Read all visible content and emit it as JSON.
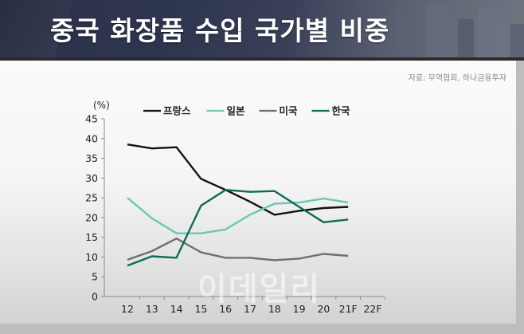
{
  "header": {
    "title": "중국 화장품 수입 국가별 비중"
  },
  "source": "자료: 무역협회, 하나금융투자",
  "watermark": "이데일리",
  "colors": {
    "france": "#111111",
    "japan": "#6cc8b0",
    "usa": "#6f6f6f",
    "korea": "#0f6a5a"
  },
  "chart_data": {
    "type": "line",
    "title": "중국 화장품 수입 국가별 비중",
    "xlabel": "",
    "ylabel": "(%)",
    "ylim": [
      0,
      45
    ],
    "yticks": [
      0,
      5,
      10,
      15,
      20,
      25,
      30,
      35,
      40,
      45
    ],
    "categories": [
      "12",
      "13",
      "14",
      "15",
      "16",
      "17",
      "18",
      "19",
      "20",
      "21F",
      "22F"
    ],
    "legend_position": "top",
    "grid": false,
    "series": [
      {
        "name": "프랑스",
        "color": "#111111",
        "values": [
          38.5,
          37.5,
          37.8,
          29.8,
          27.0,
          24.0,
          20.7,
          21.7,
          22.4,
          22.7,
          null
        ]
      },
      {
        "name": "일본",
        "color": "#6cc8b0",
        "values": [
          25.0,
          19.8,
          16.0,
          16.0,
          17.0,
          20.7,
          23.5,
          23.8,
          24.8,
          23.8,
          null
        ]
      },
      {
        "name": "미국",
        "color": "#6f6f6f",
        "values": [
          9.3,
          11.5,
          14.7,
          11.2,
          9.8,
          9.8,
          9.2,
          9.6,
          10.8,
          10.3,
          null
        ]
      },
      {
        "name": "한국",
        "color": "#0f6a5a",
        "values": [
          7.8,
          10.2,
          9.8,
          23.0,
          27.0,
          26.5,
          26.7,
          22.7,
          18.8,
          19.5,
          null
        ]
      }
    ]
  }
}
